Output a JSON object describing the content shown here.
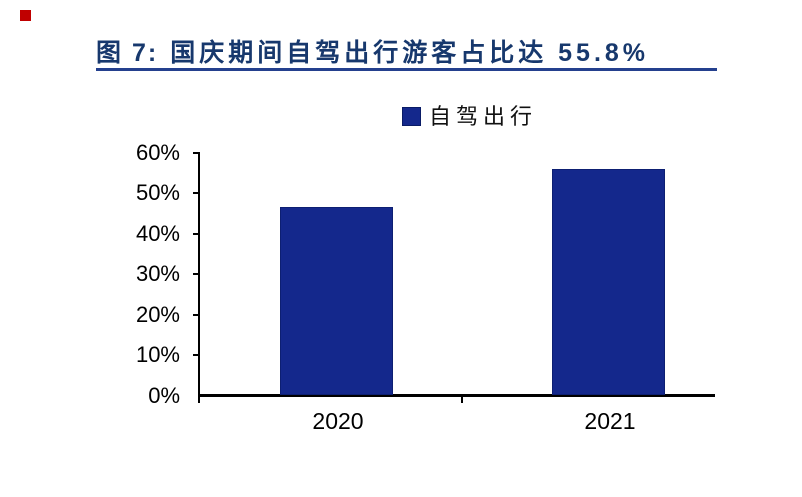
{
  "page": {
    "corner_marker_color": "#c00000",
    "title_color": "#17386d",
    "underline_color": "#24408e"
  },
  "figure": {
    "label": "图 7:",
    "title": "国庆期间自驾出行游客占比达 55.8%"
  },
  "legend": {
    "label": "自驾出行",
    "swatch_color": "#14288c"
  },
  "chart_data": {
    "type": "bar",
    "title": "国庆期间自驾出行游客占比达55.8%",
    "categories": [
      "2020",
      "2021"
    ],
    "series": [
      {
        "name": "自驾出行",
        "values": [
          46.3,
          55.8
        ]
      }
    ],
    "values": [
      46.3,
      55.8
    ],
    "xlabel": "",
    "ylabel": "",
    "ylim": [
      0,
      60
    ],
    "ytick_labels": [
      "60%",
      "50%",
      "40%",
      "30%",
      "20%",
      "10%",
      "0%"
    ],
    "grid": false,
    "legend_position": "top",
    "bar_color": "#14288c"
  }
}
